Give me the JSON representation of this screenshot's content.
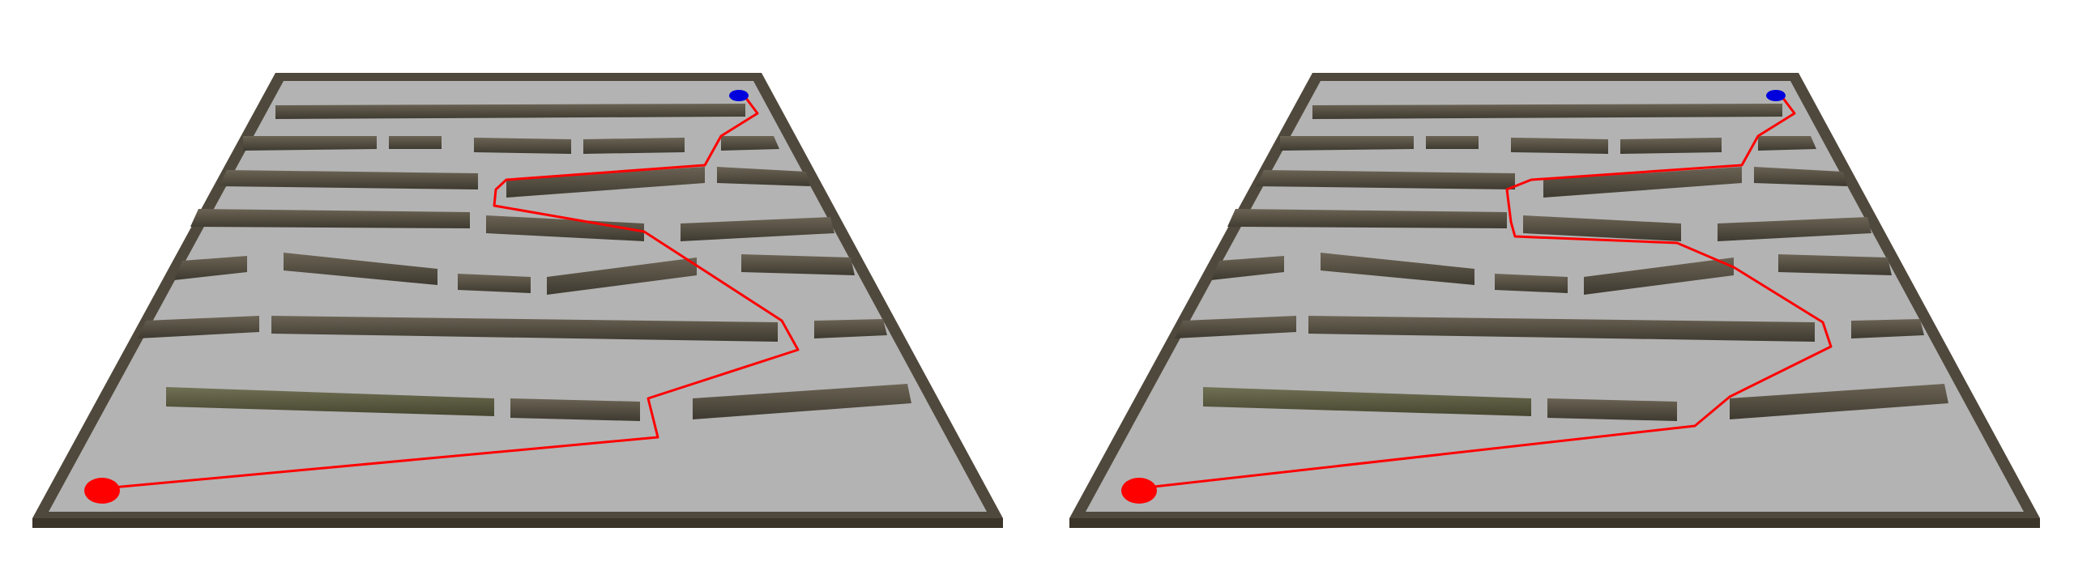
{
  "scenes": [
    {
      "id": "left",
      "start_marker": {
        "color": "#ff0000"
      },
      "goal_marker": {
        "color": "#0000dd"
      },
      "path": {
        "color": "#ff0000"
      }
    },
    {
      "id": "right",
      "start_marker": {
        "color": "#ff0000"
      },
      "goal_marker": {
        "color": "#0000dd"
      },
      "path": {
        "color": "#ff0000"
      }
    }
  ],
  "colors": {
    "floor": "#b3b3b3",
    "wall_top": "#5c5446",
    "wall_side": "#3f392e",
    "wall_greenish": "#636047",
    "background": "#ffffff"
  }
}
